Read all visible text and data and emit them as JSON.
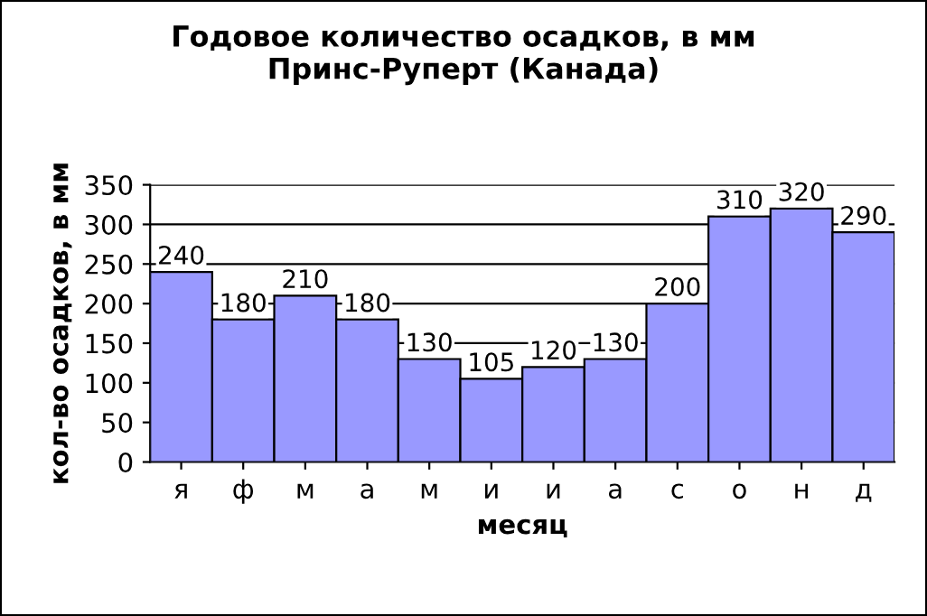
{
  "chart_data": {
    "type": "bar",
    "title": "Годовое количество осадков, в мм\nПринс-Руперт (Канада)",
    "xlabel": "месяц",
    "ylabel": "кол-во осадков, в мм",
    "categories": [
      "я",
      "ф",
      "м",
      "а",
      "м",
      "и",
      "и",
      "а",
      "с",
      "о",
      "н",
      "д"
    ],
    "values": [
      240,
      180,
      210,
      180,
      130,
      105,
      120,
      130,
      200,
      310,
      320,
      290
    ],
    "color": "#9999ff",
    "ylim": [
      0,
      350
    ],
    "yticks": [
      0,
      50,
      100,
      150,
      200,
      250,
      300,
      350
    ],
    "grid": "y",
    "data_labels": true,
    "legend": false
  }
}
